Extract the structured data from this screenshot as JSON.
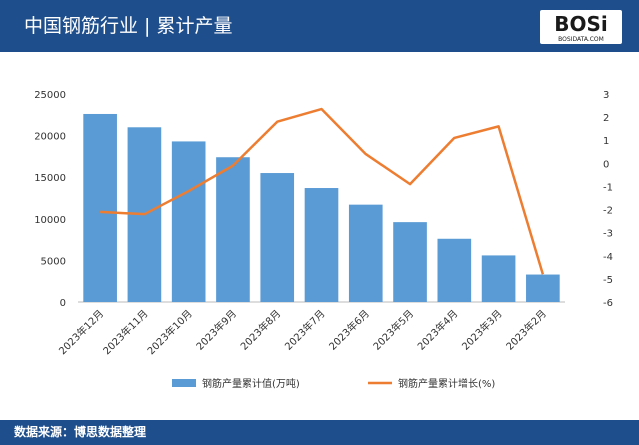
{
  "logo": {
    "mark": "BOSi",
    "site": "BOSIDATA.COM"
  },
  "chart_data": {
    "type": "bar-line",
    "title": "中国钢筋行业 | 累计产量",
    "source": "数据来源：博思数据整理",
    "categories": [
      "2023年12月",
      "2023年11月",
      "2023年10月",
      "2023年9月",
      "2023年8月",
      "2023年7月",
      "2023年6月",
      "2023年5月",
      "2023年4月",
      "2023年3月",
      "2023年2月"
    ],
    "series": [
      {
        "name": "钢筋产量累计值(万吨)",
        "type": "bar",
        "color": "#5b9bd5",
        "values": [
          22600,
          21000,
          19300,
          17400,
          15500,
          13700,
          11700,
          9600,
          7600,
          5600,
          3300
        ]
      },
      {
        "name": "钢筋产量累计增长(%)",
        "type": "line",
        "axis": "y2",
        "color": "#ed7d31",
        "values": [
          -2.1,
          -2.2,
          -1.2,
          -0.1,
          1.8,
          2.35,
          0.4,
          -0.9,
          1.1,
          1.6,
          -4.8
        ]
      }
    ],
    "ylim": [
      0,
      25000
    ],
    "yticks": [
      0,
      5000,
      10000,
      15000,
      20000,
      25000
    ],
    "y2lim": [
      -6,
      3
    ],
    "y2ticks": [
      -6,
      -5,
      -4,
      -3,
      -2,
      -1,
      0,
      1,
      2,
      3
    ],
    "grid": false,
    "legend": "bottom"
  }
}
